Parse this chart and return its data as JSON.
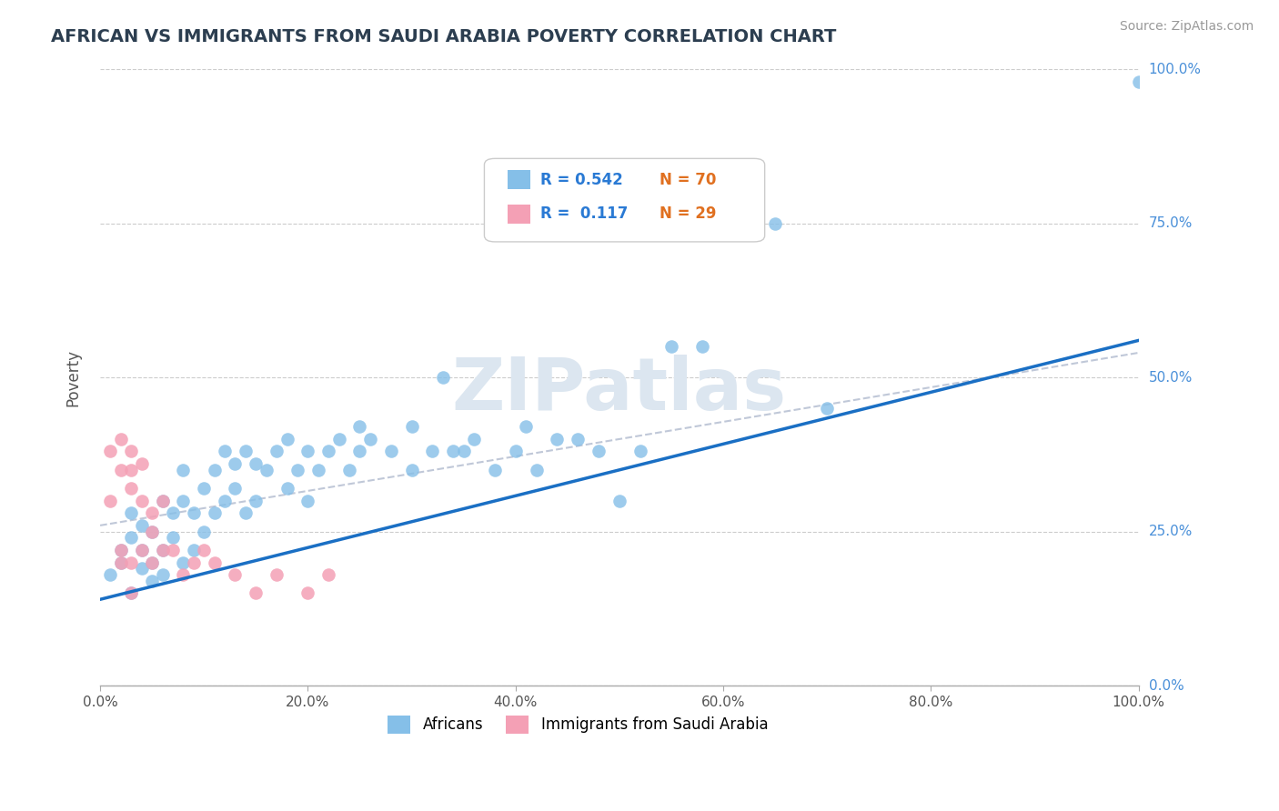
{
  "title": "AFRICAN VS IMMIGRANTS FROM SAUDI ARABIA POVERTY CORRELATION CHART",
  "source": "Source: ZipAtlas.com",
  "ylabel": "Poverty",
  "ytick_labels": [
    "0.0%",
    "25.0%",
    "50.0%",
    "75.0%",
    "100.0%"
  ],
  "ytick_values": [
    0.0,
    0.25,
    0.5,
    0.75,
    1.0
  ],
  "xlim": [
    0,
    1.0
  ],
  "ylim": [
    0,
    1.0
  ],
  "legend_r1": "R = 0.542",
  "legend_n1": "N = 70",
  "legend_r2": "R =  0.117",
  "legend_n2": "N = 29",
  "blue_color": "#85bfe8",
  "pink_color": "#f4a0b5",
  "trendline_blue": "#1a6fc4",
  "trendline_dashed": "#c0c8d8",
  "watermark": "ZIPatlas",
  "watermark_color": "#dce6f0",
  "africans_x": [
    0.01,
    0.02,
    0.02,
    0.03,
    0.03,
    0.03,
    0.04,
    0.04,
    0.04,
    0.05,
    0.05,
    0.05,
    0.06,
    0.06,
    0.06,
    0.07,
    0.07,
    0.08,
    0.08,
    0.08,
    0.09,
    0.09,
    0.1,
    0.1,
    0.11,
    0.11,
    0.12,
    0.12,
    0.13,
    0.13,
    0.14,
    0.14,
    0.15,
    0.15,
    0.16,
    0.17,
    0.18,
    0.18,
    0.19,
    0.2,
    0.2,
    0.21,
    0.22,
    0.23,
    0.24,
    0.25,
    0.25,
    0.26,
    0.28,
    0.3,
    0.3,
    0.32,
    0.33,
    0.34,
    0.35,
    0.36,
    0.38,
    0.4,
    0.41,
    0.42,
    0.44,
    0.46,
    0.48,
    0.5,
    0.52,
    0.55,
    0.58,
    0.65,
    0.7,
    1.0
  ],
  "africans_y": [
    0.18,
    0.2,
    0.22,
    0.15,
    0.24,
    0.28,
    0.19,
    0.22,
    0.26,
    0.17,
    0.2,
    0.25,
    0.18,
    0.22,
    0.3,
    0.24,
    0.28,
    0.2,
    0.3,
    0.35,
    0.22,
    0.28,
    0.25,
    0.32,
    0.28,
    0.35,
    0.3,
    0.38,
    0.32,
    0.36,
    0.28,
    0.38,
    0.3,
    0.36,
    0.35,
    0.38,
    0.32,
    0.4,
    0.35,
    0.3,
    0.38,
    0.35,
    0.38,
    0.4,
    0.35,
    0.38,
    0.42,
    0.4,
    0.38,
    0.35,
    0.42,
    0.38,
    0.5,
    0.38,
    0.38,
    0.4,
    0.35,
    0.38,
    0.42,
    0.35,
    0.4,
    0.4,
    0.38,
    0.3,
    0.38,
    0.55,
    0.55,
    0.75,
    0.45,
    0.98
  ],
  "saudi_x": [
    0.01,
    0.01,
    0.02,
    0.02,
    0.02,
    0.02,
    0.03,
    0.03,
    0.03,
    0.03,
    0.03,
    0.04,
    0.04,
    0.04,
    0.05,
    0.05,
    0.05,
    0.06,
    0.06,
    0.07,
    0.08,
    0.09,
    0.1,
    0.11,
    0.13,
    0.15,
    0.17,
    0.2,
    0.22
  ],
  "saudi_y": [
    0.38,
    0.3,
    0.35,
    0.4,
    0.2,
    0.22,
    0.32,
    0.35,
    0.38,
    0.2,
    0.15,
    0.3,
    0.22,
    0.36,
    0.28,
    0.2,
    0.25,
    0.22,
    0.3,
    0.22,
    0.18,
    0.2,
    0.22,
    0.2,
    0.18,
    0.15,
    0.18,
    0.15,
    0.18
  ],
  "blue_trendline_x": [
    0.0,
    1.0
  ],
  "blue_trendline_y": [
    0.14,
    0.56
  ],
  "dashed_trendline_x": [
    0.0,
    0.3
  ],
  "dashed_trendline_y": [
    0.27,
    0.32
  ]
}
